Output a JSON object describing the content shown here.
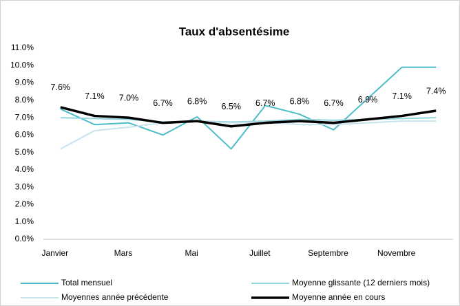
{
  "chart_data": {
    "type": "line",
    "title": "Taux d'absentésime",
    "categories": [
      "Janvier",
      null,
      "Mars",
      null,
      "Mai",
      null,
      "Juillet",
      null,
      "Septembre",
      null,
      "Novembre",
      null
    ],
    "series": [
      {
        "name": "Total mensuel",
        "color": "#4bbcc8",
        "width": 2,
        "values": [
          7.5,
          6.6,
          6.7,
          6.0,
          7.05,
          5.2,
          7.7,
          7.2,
          6.3,
          8.1,
          9.9,
          9.9
        ]
      },
      {
        "name": "Moyenne glissante (12 derniers mois)",
        "color": "#92d5dc",
        "width": 2,
        "values": [
          7.0,
          6.95,
          6.9,
          6.75,
          6.8,
          6.75,
          6.8,
          6.9,
          6.85,
          6.9,
          6.95,
          7.0
        ]
      },
      {
        "name": "Moyennes année précédente",
        "color": "#c8e2ee",
        "width": 2,
        "values": [
          5.2,
          6.25,
          6.45,
          6.7,
          6.8,
          6.7,
          6.75,
          6.6,
          6.6,
          6.7,
          6.8,
          6.8
        ]
      },
      {
        "name": "Moyenne année en cours",
        "color": "#000000",
        "width": 3.5,
        "values": [
          7.6,
          7.1,
          7.0,
          6.7,
          6.8,
          6.5,
          6.7,
          6.8,
          6.7,
          6.9,
          7.1,
          7.4
        ],
        "value_labels": [
          "7.6%",
          "7.1%",
          "7.0%",
          "6.7%",
          "6.8%",
          "6.5%",
          "6.7%",
          "6.8%",
          "6.7%",
          "6.9%",
          "7.1%",
          "7.4%"
        ]
      }
    ],
    "ylim": [
      0,
      11
    ],
    "yticks": [
      {
        "value": 0,
        "label": "0.0%"
      },
      {
        "value": 1,
        "label": "1.0%"
      },
      {
        "value": 2,
        "label": "2.0%"
      },
      {
        "value": 3,
        "label": "3.0%"
      },
      {
        "value": 4,
        "label": "4.0%"
      },
      {
        "value": 5,
        "label": "5.0%"
      },
      {
        "value": 6,
        "label": "6.0%"
      },
      {
        "value": 7,
        "label": "7.0%"
      },
      {
        "value": 8,
        "label": "8.0%"
      },
      {
        "value": 9,
        "label": "9.0%"
      },
      {
        "value": 10,
        "label": "10.0%"
      },
      {
        "value": 11,
        "label": "11.0%"
      }
    ],
    "grid": false,
    "legend": "bottom"
  }
}
